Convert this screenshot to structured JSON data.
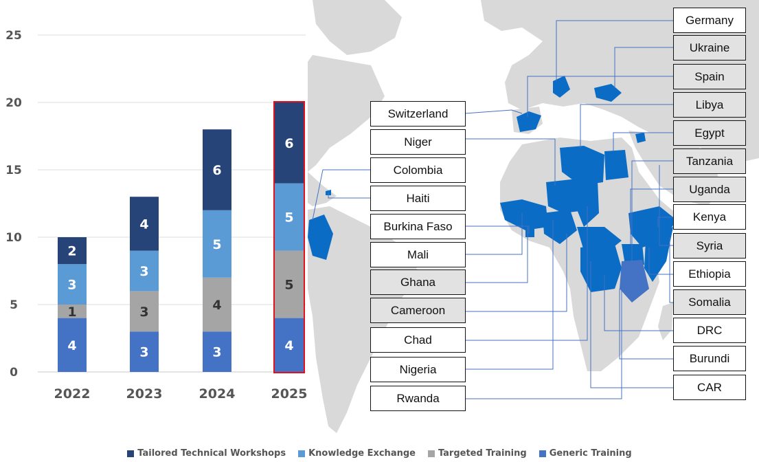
{
  "chart_data": {
    "type": "bar",
    "stacked": true,
    "categories": [
      "2022",
      "2023",
      "2024",
      "2025"
    ],
    "series": [
      {
        "name": "Generic Training",
        "color": "#4472c4",
        "values": [
          4,
          3,
          3,
          4
        ]
      },
      {
        "name": "Targeted Training",
        "color": "#a5a5a5",
        "values": [
          1,
          3,
          4,
          5
        ]
      },
      {
        "name": "Knowledge Exchange",
        "color": "#5b9bd5",
        "values": [
          3,
          3,
          5,
          5
        ]
      },
      {
        "name": "Tailored Technical Workshops",
        "color": "#264478",
        "values": [
          2,
          4,
          6,
          6
        ]
      }
    ],
    "ylim": [
      0,
      25
    ],
    "yticks": [
      0,
      5,
      10,
      15,
      20,
      25
    ],
    "grid": true,
    "highlight_category": "2025",
    "highlight_color": "#e3101e",
    "legend_position": "bottom",
    "legend_order": [
      "Tailored Technical Workshops",
      "Knowledge Exchange",
      "Targeted Training",
      "Generic Training"
    ]
  },
  "map": {
    "land_color": "#d9d9d9",
    "highlight_color": "#0a6cc4",
    "secondary_highlight_color": "#4472c4",
    "leader_color": "#4472c4",
    "left_labels": [
      {
        "name": "Switzerland",
        "shaded": false
      },
      {
        "name": "Niger",
        "shaded": false
      },
      {
        "name": "Colombia",
        "shaded": false
      },
      {
        "name": "Haiti",
        "shaded": false
      },
      {
        "name": "Burkina Faso",
        "shaded": false
      },
      {
        "name": "Mali",
        "shaded": false
      },
      {
        "name": "Ghana",
        "shaded": true
      },
      {
        "name": "Cameroon",
        "shaded": true
      },
      {
        "name": "Chad",
        "shaded": false
      },
      {
        "name": "Nigeria",
        "shaded": false
      },
      {
        "name": "Rwanda",
        "shaded": false
      }
    ],
    "right_labels": [
      {
        "name": "Germany",
        "shaded": false
      },
      {
        "name": "Ukraine",
        "shaded": true
      },
      {
        "name": "Spain",
        "shaded": true
      },
      {
        "name": "Libya",
        "shaded": true
      },
      {
        "name": "Egypt",
        "shaded": true
      },
      {
        "name": "Tanzania",
        "shaded": true
      },
      {
        "name": "Uganda",
        "shaded": true
      },
      {
        "name": "Kenya",
        "shaded": false
      },
      {
        "name": "Syria",
        "shaded": true
      },
      {
        "name": "Ethiopia",
        "shaded": false
      },
      {
        "name": "Somalia",
        "shaded": true
      },
      {
        "name": "DRC",
        "shaded": false
      },
      {
        "name": "Burundi",
        "shaded": false
      },
      {
        "name": "CAR",
        "shaded": false
      }
    ]
  }
}
